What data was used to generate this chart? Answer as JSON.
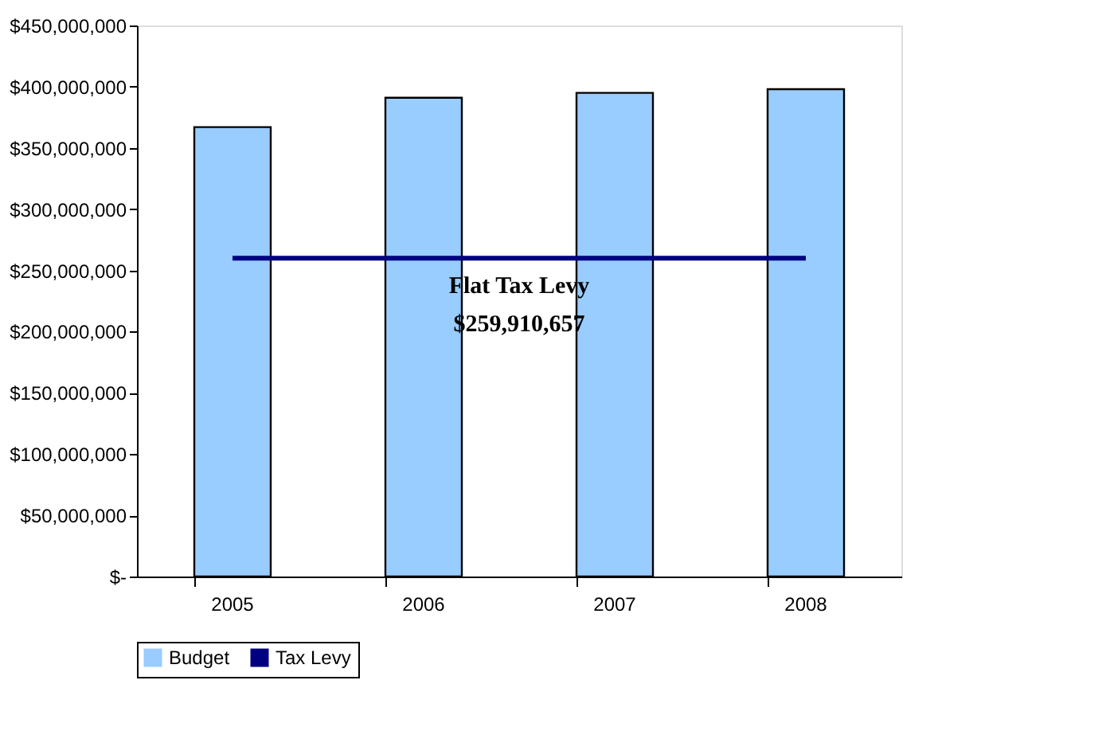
{
  "chart_data": {
    "type": "bar",
    "categories": [
      "2005",
      "2006",
      "2007",
      "2008"
    ],
    "series": [
      {
        "name": "Budget",
        "color": "#99ccff",
        "values": [
          367000000,
          391000000,
          395000000,
          398000000
        ]
      },
      {
        "name": "Tax Levy",
        "type": "line",
        "color": "#000080",
        "values": [
          259910657,
          259910657,
          259910657,
          259910657
        ]
      }
    ],
    "ylim": [
      0,
      450000000
    ],
    "yticks": [
      {
        "value": 0,
        "label": "$-"
      },
      {
        "value": 50000000,
        "label": "$50,000,000"
      },
      {
        "value": 100000000,
        "label": "$100,000,000"
      },
      {
        "value": 150000000,
        "label": "$150,000,000"
      },
      {
        "value": 200000000,
        "label": "$200,000,000"
      },
      {
        "value": 250000000,
        "label": "$250,000,000"
      },
      {
        "value": 300000000,
        "label": "$300,000,000"
      },
      {
        "value": 350000000,
        "label": "$350,000,000"
      },
      {
        "value": 400000000,
        "label": "$400,000,000"
      },
      {
        "value": 450000000,
        "label": "$450,000,000"
      }
    ],
    "annotations": [
      {
        "text": "Flat Tax Levy\n$259,910,657",
        "x": "2006",
        "y": 259910657
      }
    ],
    "legend": "bottom",
    "grid": false
  }
}
